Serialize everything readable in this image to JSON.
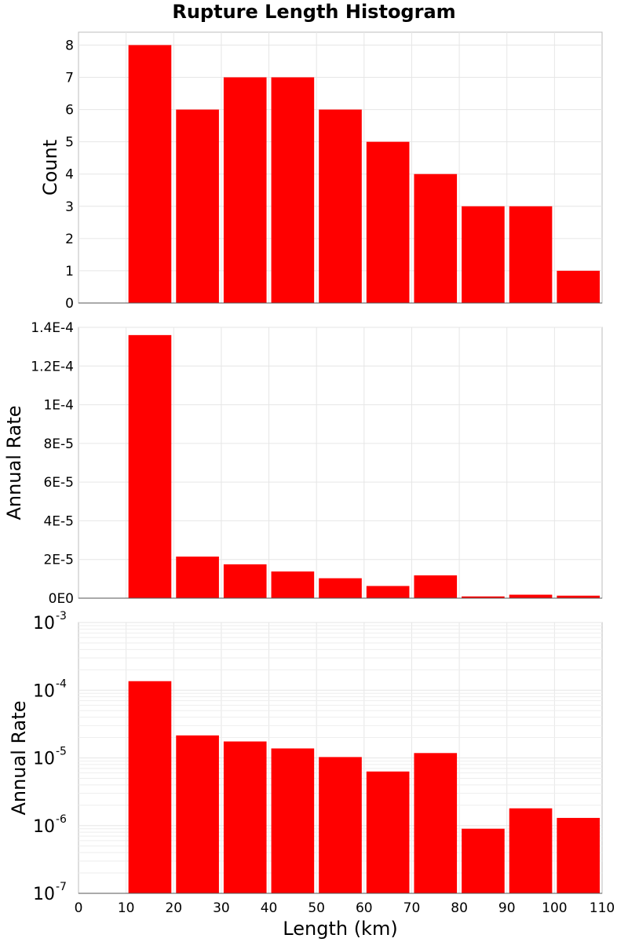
{
  "title": "Rupture Length Histogram",
  "color_bar": "#ff0000",
  "chart_data": [
    {
      "type": "bar",
      "ylabel": "Count",
      "xlim": [
        0,
        110
      ],
      "ylim": [
        0,
        8.4
      ],
      "yscale": "linear",
      "grid": true,
      "bins": [
        [
          10,
          20
        ],
        [
          20,
          30
        ],
        [
          30,
          40
        ],
        [
          40,
          50
        ],
        [
          50,
          60
        ],
        [
          60,
          70
        ],
        [
          70,
          80
        ],
        [
          80,
          90
        ],
        [
          90,
          100
        ],
        [
          100,
          110
        ]
      ],
      "values": [
        8,
        6,
        7,
        7,
        6,
        5,
        4,
        3,
        3,
        1
      ],
      "yticks": [
        0,
        1,
        2,
        3,
        4,
        5,
        6,
        7,
        8
      ],
      "ytick_labels": [
        "0",
        "1",
        "2",
        "3",
        "4",
        "5",
        "6",
        "7",
        "8"
      ]
    },
    {
      "type": "bar",
      "ylabel": "Annual Rate",
      "xlim": [
        0,
        110
      ],
      "ylim": [
        0,
        0.00014
      ],
      "yscale": "linear",
      "grid": true,
      "bins": [
        [
          10,
          20
        ],
        [
          20,
          30
        ],
        [
          30,
          40
        ],
        [
          40,
          50
        ],
        [
          50,
          60
        ],
        [
          60,
          70
        ],
        [
          70,
          80
        ],
        [
          80,
          90
        ],
        [
          90,
          100
        ],
        [
          100,
          110
        ]
      ],
      "values": [
        0.000136,
        2.15e-05,
        1.75e-05,
        1.38e-05,
        1.03e-05,
        6.3e-06,
        1.18e-05,
        9e-07,
        1.8e-06,
        1.3e-06
      ],
      "yticks": [
        0,
        2e-05,
        4e-05,
        6e-05,
        8e-05,
        0.0001,
        0.00012,
        0.00014
      ],
      "ytick_labels": [
        "0E0",
        "2E-5",
        "4E-5",
        "6E-5",
        "8E-5",
        "1E-4",
        "1.2E-4",
        "1.4E-4"
      ]
    },
    {
      "type": "bar",
      "ylabel": "Annual Rate",
      "xlabel": "Length (km)",
      "xlim": [
        0,
        110
      ],
      "ylim": [
        1e-07,
        0.001
      ],
      "yscale": "log",
      "grid": true,
      "bins": [
        [
          10,
          20
        ],
        [
          20,
          30
        ],
        [
          30,
          40
        ],
        [
          40,
          50
        ],
        [
          50,
          60
        ],
        [
          60,
          70
        ],
        [
          70,
          80
        ],
        [
          80,
          90
        ],
        [
          90,
          100
        ],
        [
          100,
          110
        ]
      ],
      "values": [
        0.000136,
        2.15e-05,
        1.75e-05,
        1.38e-05,
        1.03e-05,
        6.3e-06,
        1.18e-05,
        9e-07,
        1.8e-06,
        1.3e-06
      ],
      "ytick_exponents": [
        "-7",
        "-6",
        "-5",
        "-4",
        "-3"
      ],
      "ytick_base": "10",
      "xticks": [
        0,
        10,
        20,
        30,
        40,
        50,
        60,
        70,
        80,
        90,
        100,
        110
      ],
      "xtick_labels": [
        "0",
        "10",
        "20",
        "30",
        "40",
        "50",
        "60",
        "70",
        "80",
        "90",
        "100",
        "110"
      ]
    }
  ]
}
